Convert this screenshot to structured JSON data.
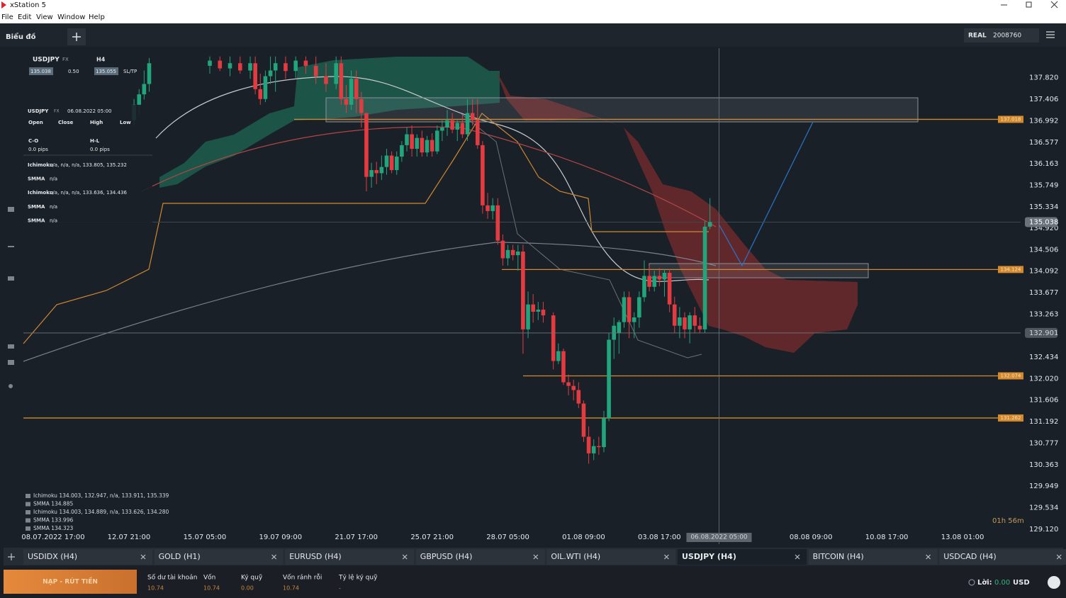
{
  "window": {
    "title": "xStation 5",
    "menu": [
      "File",
      "Edit",
      "View",
      "Window",
      "Help"
    ]
  },
  "toolbar": {
    "view": "Biểu đồ",
    "account_type": "REAL",
    "account_number": "2008760"
  },
  "chart_header": {
    "symbol": "USDJPY",
    "market": "FX",
    "timeframe": "H4",
    "bid": "135.038",
    "volume": "0.50",
    "ask": "135.055",
    "sltp": "SL/TP"
  },
  "info_panel": {
    "symbol": "USDJPY",
    "market": "FX",
    "time": "06.08.2022 05:00",
    "fields": [
      "Open",
      "Close",
      "High",
      "Low"
    ],
    "c_o_label": "C-O",
    "c_o": "0.0 pips",
    "h_l_label": "H-L",
    "h_l": "0.0 pips",
    "indicators": [
      {
        "name": "Ichimoku",
        "value": "n/a, n/a, n/a, 133.805, 135.232"
      },
      {
        "name": "SMMA",
        "value": "n/a"
      },
      {
        "name": "Ichimoku",
        "value": "n/a, n/a, n/a, 133.636, 134.436"
      },
      {
        "name": "SMMA",
        "value": "n/a"
      },
      {
        "name": "SMMA",
        "value": "n/a"
      }
    ]
  },
  "legend": [
    "Ichimoku 134.003, 132.947, n/a, 133.911, 135.339",
    "SMMA 134.885",
    "Ichimoku 134.003, 134.889, n/a, 133.626, 134.280",
    "SMMA 133.996",
    "SMMA 134.323"
  ],
  "timer": "01h 56m",
  "chart_data": {
    "type": "candlestick",
    "x": [
      16,
      17,
      18,
      19,
      31,
      33,
      35,
      37,
      39,
      40,
      41,
      42,
      43,
      44,
      46,
      48,
      50,
      52,
      54,
      56,
      57,
      58,
      59,
      60,
      61,
      62,
      63,
      64,
      65,
      66,
      67,
      68,
      69,
      70,
      71,
      72,
      73,
      74,
      75,
      76,
      77,
      78,
      79,
      80,
      81,
      82,
      83,
      84,
      85,
      86,
      87,
      88,
      89,
      90,
      91,
      92,
      93,
      94,
      95,
      96,
      97,
      99,
      100,
      101,
      102,
      103,
      104,
      105,
      106,
      107,
      108,
      109,
      110,
      111,
      112,
      113,
      114,
      115,
      116,
      117,
      118,
      119,
      120,
      121,
      122,
      123,
      124,
      125,
      126,
      127,
      128,
      129,
      130
    ],
    "open": [
      137.0,
      137.3,
      137.5,
      137.7,
      138.05,
      138.15,
      138.0,
      138.1,
      137.96,
      138.1,
      137.6,
      137.41,
      137.85,
      137.96,
      138.1,
      137.95,
      138.15,
      138.05,
      137.85,
      137.7,
      138.1,
      137.41,
      137.3,
      137.8,
      137.41,
      137.14,
      135.91,
      136.04,
      135.98,
      136.1,
      136.32,
      136.04,
      136.3,
      136.52,
      136.73,
      136.45,
      136.66,
      136.38,
      136.62,
      136.4,
      136.8,
      136.86,
      137.0,
      136.82,
      136.95,
      136.73,
      137.14,
      137.0,
      136.52,
      135.36,
      135.25,
      135.36,
      134.68,
      134.34,
      134.5,
      134.4,
      134.47,
      132.97,
      133.45,
      133.31,
      133.35,
      133.24,
      132.36,
      132.55,
      131.95,
      131.88,
      131.8,
      131.54,
      130.9,
      130.58,
      130.72,
      130.7,
      131.26,
      132.77,
      132.9,
      133.11,
      133.59,
      133.11,
      133.2,
      133.59,
      134.0,
      133.79,
      134.0,
      133.93,
      134.06,
      133.45,
      133.04,
      133.2,
      132.97,
      133.24,
      133.04,
      132.97,
      134.95
    ],
    "high": [
      137.41,
      137.6,
      137.96,
      138.2,
      138.23,
      138.23,
      138.23,
      138.23,
      138.23,
      138.23,
      137.9,
      137.96,
      138.23,
      138.23,
      138.23,
      138.23,
      138.23,
      138.23,
      138.1,
      138.23,
      138.23,
      137.68,
      137.96,
      137.96,
      137.55,
      137.14,
      136.18,
      136.2,
      136.32,
      136.45,
      136.4,
      136.4,
      136.6,
      136.86,
      136.9,
      136.73,
      136.8,
      136.7,
      136.75,
      136.9,
      137.0,
      137.2,
      137.14,
      137.0,
      137.1,
      137.41,
      137.41,
      137.41,
      136.6,
      135.6,
      135.5,
      135.5,
      134.8,
      134.6,
      134.6,
      134.6,
      134.6,
      133.7,
      133.65,
      133.5,
      133.5,
      133.3,
      132.7,
      132.6,
      132.1,
      132.0,
      131.95,
      131.6,
      131.1,
      130.85,
      130.9,
      131.4,
      132.9,
      133.2,
      133.15,
      133.7,
      133.7,
      133.3,
      133.7,
      134.3,
      134.2,
      134.1,
      134.15,
      134.13,
      134.13,
      133.6,
      133.4,
      133.3,
      133.3,
      133.4,
      133.2,
      135.05,
      135.5
    ],
    "low": [
      136.9,
      137.1,
      137.4,
      137.55,
      137.9,
      137.95,
      137.85,
      137.9,
      137.8,
      137.5,
      137.3,
      137.35,
      137.7,
      137.55,
      137.8,
      137.82,
      137.9,
      137.7,
      137.55,
      137.6,
      137.3,
      137.14,
      137.2,
      137.14,
      136.86,
      135.63,
      135.7,
      135.77,
      135.85,
      135.95,
      135.98,
      135.95,
      136.2,
      136.4,
      136.3,
      136.3,
      136.3,
      136.3,
      136.3,
      136.35,
      136.6,
      136.7,
      136.75,
      136.6,
      136.66,
      136.6,
      136.9,
      136.45,
      135.2,
      135.1,
      135.09,
      134.6,
      134.2,
      134.2,
      134.3,
      134.1,
      132.5,
      132.8,
      133.1,
      133.15,
      133.1,
      132.2,
      132.3,
      131.9,
      131.7,
      131.6,
      131.45,
      130.8,
      130.38,
      130.45,
      130.55,
      130.6,
      131.2,
      132.4,
      132.5,
      133.0,
      132.8,
      132.8,
      133.0,
      133.5,
      133.7,
      133.7,
      133.8,
      133.6,
      133.3,
      132.9,
      132.8,
      132.8,
      132.7,
      132.9,
      132.9,
      132.9,
      134.9
    ],
    "close": [
      137.3,
      137.5,
      137.7,
      138.1,
      138.15,
      138.0,
      138.1,
      137.96,
      138.1,
      137.6,
      137.41,
      137.85,
      137.96,
      138.1,
      137.95,
      138.15,
      138.05,
      137.85,
      137.7,
      138.1,
      137.41,
      137.3,
      137.8,
      137.41,
      137.14,
      135.91,
      136.04,
      135.98,
      136.1,
      136.32,
      136.04,
      136.3,
      136.52,
      136.73,
      136.45,
      136.66,
      136.38,
      136.62,
      136.4,
      136.8,
      136.86,
      137.0,
      136.82,
      136.95,
      136.73,
      137.14,
      137.0,
      136.52,
      135.36,
      135.25,
      135.36,
      134.68,
      134.34,
      134.5,
      134.4,
      134.47,
      132.97,
      133.45,
      133.31,
      133.35,
      133.24,
      132.36,
      132.55,
      131.95,
      131.88,
      131.8,
      131.54,
      130.9,
      130.58,
      130.72,
      130.7,
      131.26,
      132.77,
      133.04,
      133.11,
      133.59,
      133.11,
      133.2,
      133.59,
      134.0,
      133.79,
      134.0,
      133.93,
      134.06,
      133.45,
      133.04,
      133.2,
      132.97,
      133.24,
      133.04,
      132.97,
      134.95,
      135.04
    ],
    "up_color": "#22a57c",
    "down_color": "#e33b40",
    "xlim": [
      -5.9,
      191.5
    ],
    "ylim": [
      128.83,
      138.39
    ],
    "xticks": [
      {
        "value": 0,
        "label": "08.07.2022 17:00"
      },
      {
        "value": 15,
        "label": "12.07 21:00"
      },
      {
        "value": 30,
        "label": "15.07 05:00"
      },
      {
        "value": 45,
        "label": "19.07 09:00"
      },
      {
        "value": 60,
        "label": "21.07 17:00"
      },
      {
        "value": 75,
        "label": "25.07 21:00"
      },
      {
        "value": 90,
        "label": "28.07 05:00"
      },
      {
        "value": 105,
        "label": "01.08 09:00"
      },
      {
        "value": 120,
        "label": "03.08 17:00"
      },
      {
        "value": 150,
        "label": "08.08 09:00"
      },
      {
        "value": 165,
        "label": "10.08 17:00"
      },
      {
        "value": 180,
        "label": "13.08 01:00"
      }
    ],
    "yticks": [
      {
        "value": 137.82,
        "label": "137.820"
      },
      137.406,
      136.992,
      136.577,
      136.163,
      135.749,
      135.334,
      {
        "value": 134.92,
        "label": "134.920"
      },
      134.506,
      134.092,
      133.677,
      133.263,
      132.434,
      {
        "value": 132.02,
        "label": "132.020"
      },
      131.606,
      131.192,
      130.777,
      130.363,
      129.949,
      129.534,
      {
        "value": 129.12,
        "label": "129.120"
      }
    ],
    "grid": false,
    "levels": [
      137.018,
      134.124,
      132.074,
      131.262
    ],
    "level_color": "#d48a2c",
    "last_price": 135.038,
    "crosshair": {
      "x": {
        "value": 131.8,
        "label": "06.08.2022 05:00"
      },
      "y": 132.901
    }
  },
  "tabs": {
    "items": [
      "USDIDX (H4)",
      "GOLD (H1)",
      "EURUSD (H4)",
      "GBPUSD (H4)",
      "OIL.WTI (H4)",
      "USDJPY (H4)",
      "BITCOIN (H4)",
      "USDCAD (H4)"
    ],
    "active": 5
  },
  "footer": {
    "button": "NẠP - RÚT TIỀN",
    "stats": [
      {
        "label": "Số dư tài khoản",
        "value": "10.74"
      },
      {
        "label": "Vốn",
        "value": "10.74"
      },
      {
        "label": "Ký quỹ",
        "value": "0.00"
      },
      {
        "label": "Vốn rảnh rỗi",
        "value": "10.74"
      },
      {
        "label": "Tỷ lệ ký quỹ",
        "value": "-"
      }
    ],
    "profit_label": "Lời:",
    "profit": "0.00",
    "currency": "USD"
  }
}
